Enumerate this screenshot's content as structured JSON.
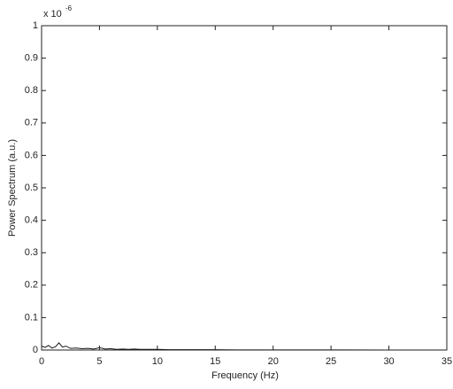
{
  "chart_data": {
    "type": "line",
    "xlabel": "Frequency (Hz)",
    "ylabel": "Power Spectrum (a.u.)",
    "y_scale_base": "x 10",
    "y_scale_exponent": "-6",
    "xlim": [
      0,
      35
    ],
    "xticks": [
      0,
      5,
      10,
      15,
      20,
      25,
      30,
      35
    ],
    "ylim": [
      0,
      1
    ],
    "yticks": [
      0,
      0.1,
      0.2,
      0.3,
      0.4,
      0.5,
      0.6,
      0.7,
      0.8,
      0.9,
      1
    ],
    "grid": false,
    "x": [
      0,
      0.3,
      0.6,
      0.9,
      1.2,
      1.5,
      1.8,
      2.1,
      2.5,
      3,
      3.5,
      4,
      4.5,
      5,
      5.5,
      6,
      6.5,
      7,
      7.5,
      8,
      8.5,
      9,
      10,
      11,
      12,
      13,
      14,
      15,
      17,
      20,
      25,
      30,
      35
    ],
    "series": [
      {
        "color": "#1a1a1a",
        "values": [
          0.012,
          0.008,
          0.014,
          0.006,
          0.01,
          0.022,
          0.009,
          0.012,
          0.005,
          0.006,
          0.004,
          0.005,
          0.003,
          0.007,
          0.003,
          0.004,
          0.002,
          0.003,
          0.002,
          0.003,
          0.002,
          0.002,
          0.002,
          0.001,
          0.001,
          0.001,
          0.001,
          0.001,
          0.0005,
          0.0003,
          0.0002,
          0.0001,
          0.0001
        ]
      }
    ]
  }
}
